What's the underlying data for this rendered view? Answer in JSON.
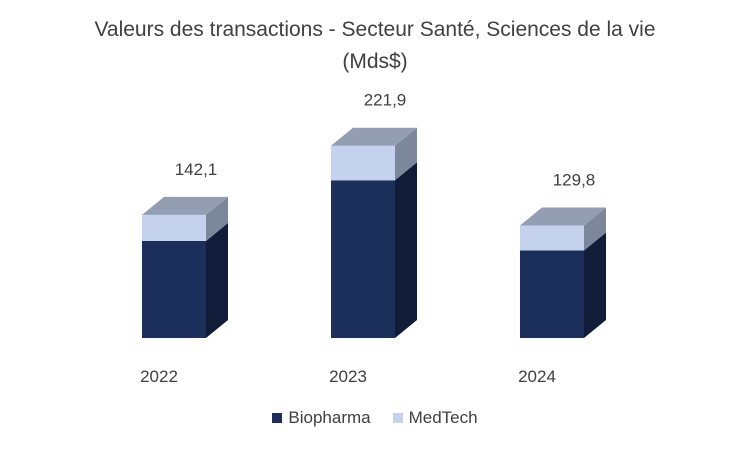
{
  "chart_data": {
    "type": "bar",
    "stacked": true,
    "style": "3d",
    "title": "Valeurs des transactions - Secteur Santé, Sciences de la vie (Mds$)",
    "categories": [
      "2022",
      "2023",
      "2024"
    ],
    "totals": [
      142.1,
      221.9,
      129.8
    ],
    "total_labels": [
      "142,1",
      "221,9",
      "129,8"
    ],
    "series": [
      {
        "name": "Biopharma",
        "color": "#1b2f5a",
        "values": [
          112,
          182,
          101
        ]
      },
      {
        "name": "MedTech",
        "color": "#c5d2ee",
        "values": [
          30.1,
          39.9,
          28.8
        ]
      }
    ],
    "ylim": [
      0,
      240
    ],
    "grid": false,
    "legend_position": "bottom"
  }
}
